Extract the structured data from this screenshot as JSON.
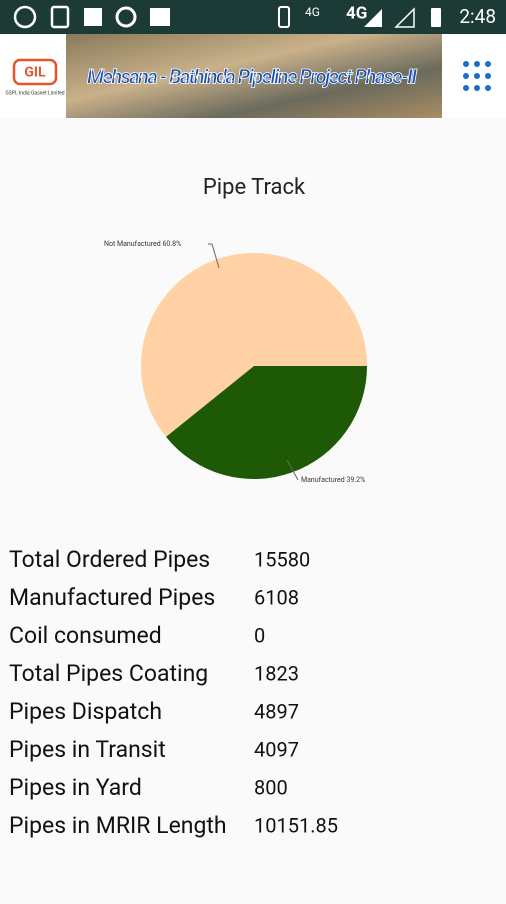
{
  "status_bar": {
    "network": "4G",
    "time": "2:48"
  },
  "header": {
    "logo_text": "GIL",
    "company": "GSPL India Gasnet Limited",
    "banner_title": "Mehsana - Bathinda Pipeline Project Phase-II"
  },
  "chart_data": {
    "type": "pie",
    "title": "Pipe Track",
    "categories": [
      "Not Manufactured",
      "Manufactured"
    ],
    "values": [
      60.8,
      39.2
    ],
    "value_labels": [
      "60.8%",
      "39.2%"
    ],
    "colors": [
      "#ffd1a4",
      "#1e5a06"
    ]
  },
  "table": {
    "rows": [
      [
        "Total Ordered Pipes",
        15580
      ],
      [
        "Manufactured Pipes",
        6108
      ],
      [
        "Coil consumed",
        0
      ],
      [
        "Total Pipes Coating",
        1823
      ],
      [
        "Pipes Dispatch",
        4897
      ],
      [
        "Pipes in Transit",
        4097
      ],
      [
        "Pipes in Yard",
        800
      ],
      [
        "Pipes in MRIR Length",
        10151.85
      ]
    ]
  }
}
